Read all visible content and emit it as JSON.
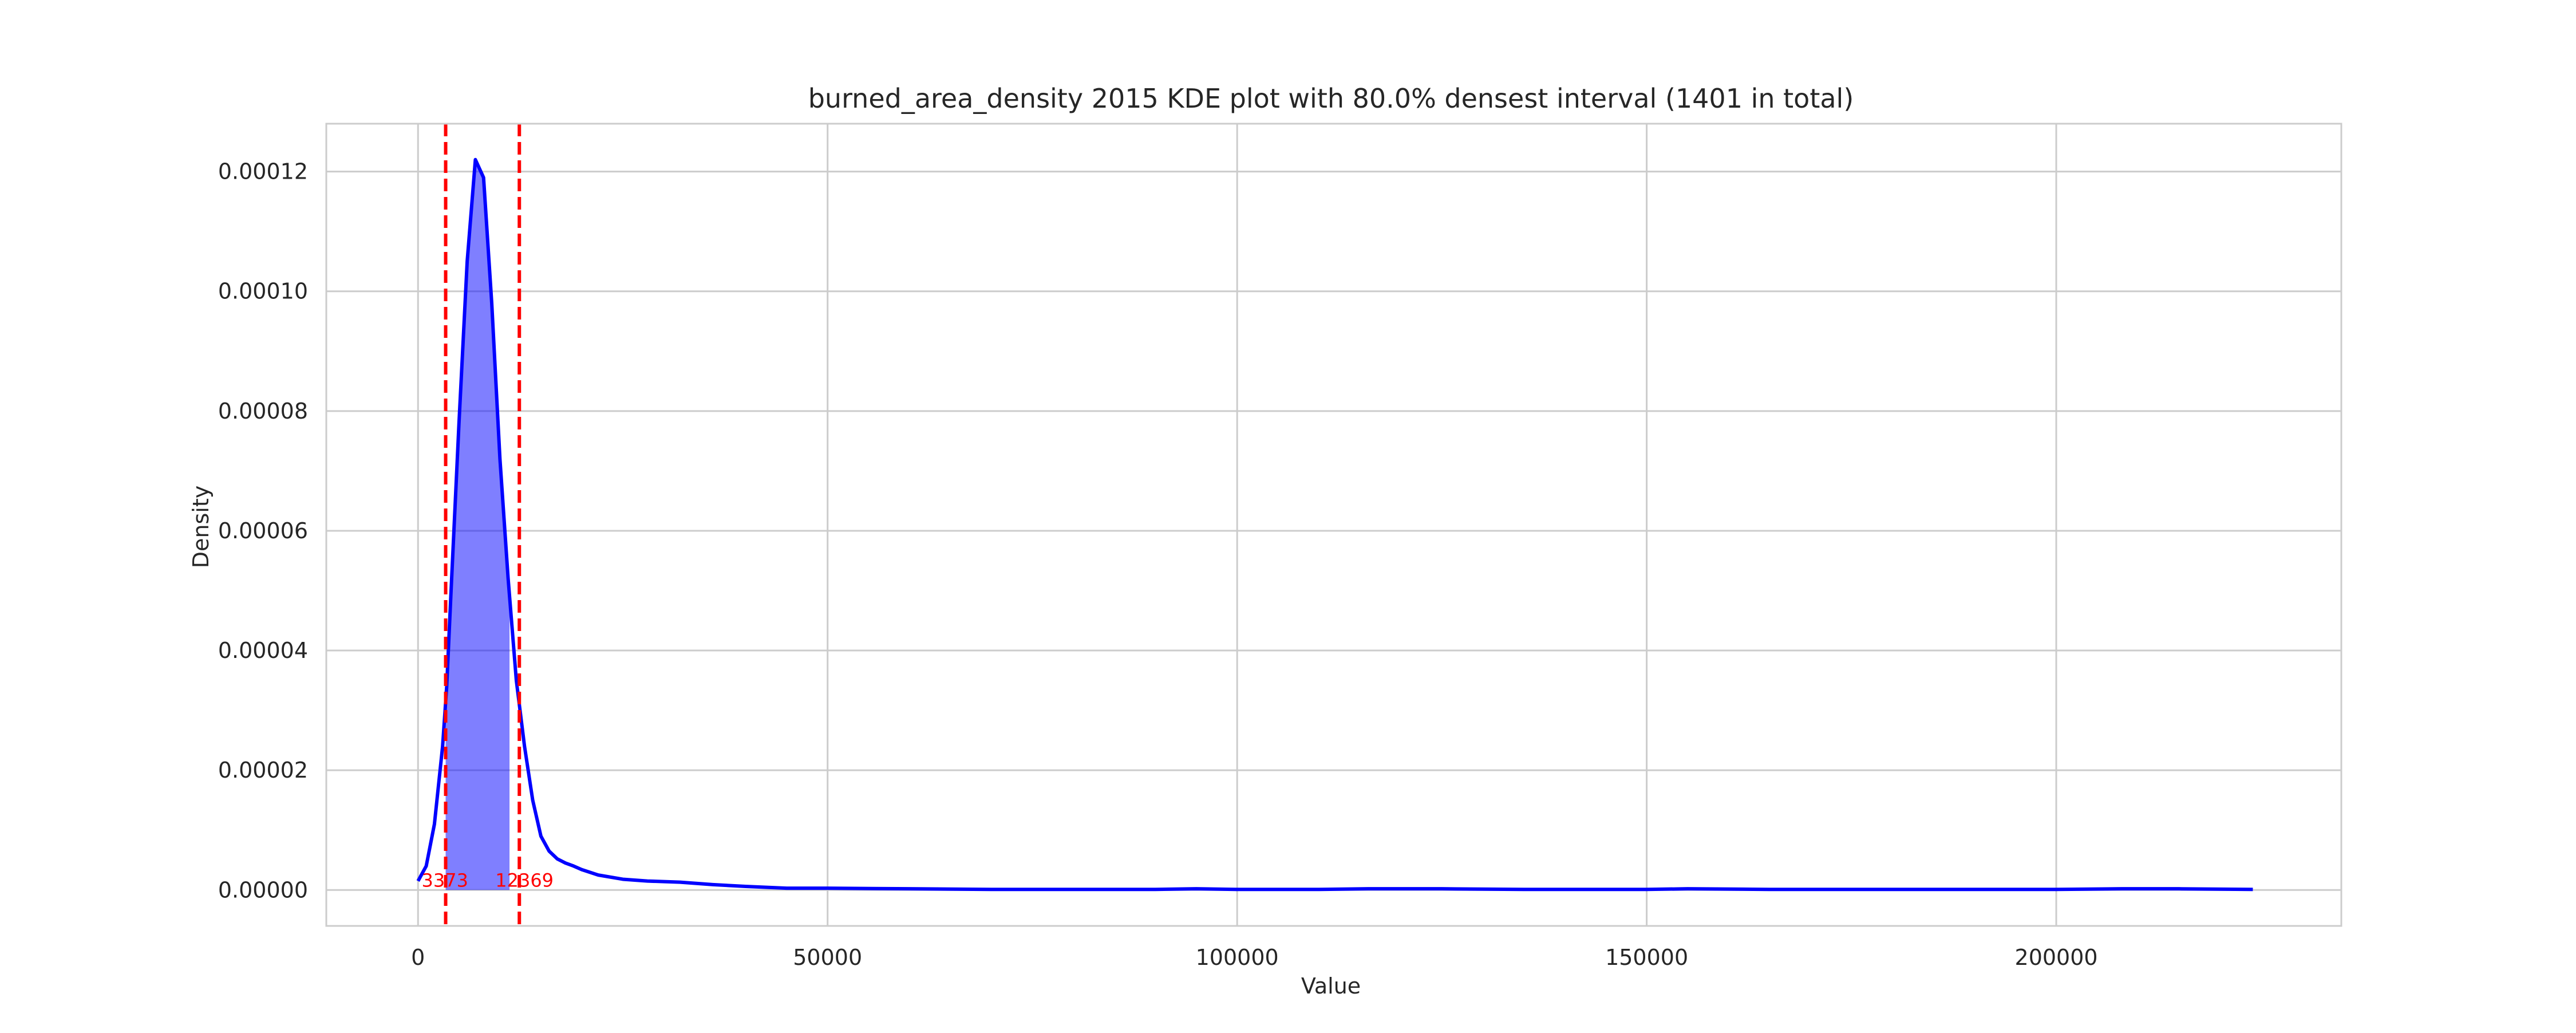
{
  "chart_data": {
    "type": "area",
    "title": "burned_area_density 2015 KDE plot with 80.0% densest interval (1401 in total)",
    "xlabel": "Value",
    "ylabel": "Density",
    "xlim": [
      -11200,
      234800
    ],
    "ylim": [
      -6e-06,
      0.000128
    ],
    "x_ticks": [
      0,
      50000,
      100000,
      150000,
      200000
    ],
    "x_tick_labels": [
      "0",
      "50000",
      "100000",
      "150000",
      "200000"
    ],
    "y_ticks": [
      0,
      2e-05,
      4e-05,
      6e-05,
      8e-05,
      0.0001,
      0.00012
    ],
    "y_tick_labels": [
      "0.00000",
      "0.00002",
      "0.00004",
      "0.00006",
      "0.00008",
      "0.00010",
      "0.00012"
    ],
    "grid": true,
    "series": [
      {
        "color": "#0000ff",
        "x": [
          0,
          1000,
          2000,
          3000,
          3500,
          4000,
          5000,
          6000,
          7000,
          8000,
          9000,
          10000,
          11000,
          12000,
          13000,
          14000,
          15000,
          16000,
          17000,
          18000,
          19000,
          20000,
          22000,
          25000,
          28000,
          32000,
          36000,
          40000,
          45000,
          50000,
          60000,
          70000,
          80000,
          90000,
          95000,
          100000,
          110000,
          116000,
          125000,
          135000,
          150000,
          155000,
          165000,
          180000,
          200000,
          208000,
          215000,
          224000
        ],
        "y": [
          1.5e-06,
          4e-06,
          1.1e-05,
          2.4e-05,
          3.4e-05,
          4.9e-05,
          7.8e-05,
          0.000105,
          0.000122,
          0.000119,
          9.8e-05,
          7.2e-05,
          5.2e-05,
          3.5e-05,
          2.4e-05,
          1.5e-05,
          9e-06,
          6.5e-06,
          5.2e-06,
          4.5e-06,
          4e-06,
          3.4e-06,
          2.5e-06,
          1.8e-06,
          1.5e-06,
          1.3e-06,
          9e-07,
          6e-07,
          3e-07,
          3e-07,
          2e-07,
          1e-07,
          1e-07,
          1e-07,
          2e-07,
          1e-07,
          1e-07,
          2e-07,
          2e-07,
          1e-07,
          1e-07,
          2e-07,
          1e-07,
          1e-07,
          1e-07,
          2e-07,
          2e-07,
          1e-07
        ]
      }
    ],
    "interval": {
      "low": 3373,
      "high": 12369,
      "fill_color": "#0000ff",
      "fill_opacity": 0.5,
      "line_color": "#ff0000",
      "labels": [
        "3373",
        "12369"
      ]
    }
  }
}
